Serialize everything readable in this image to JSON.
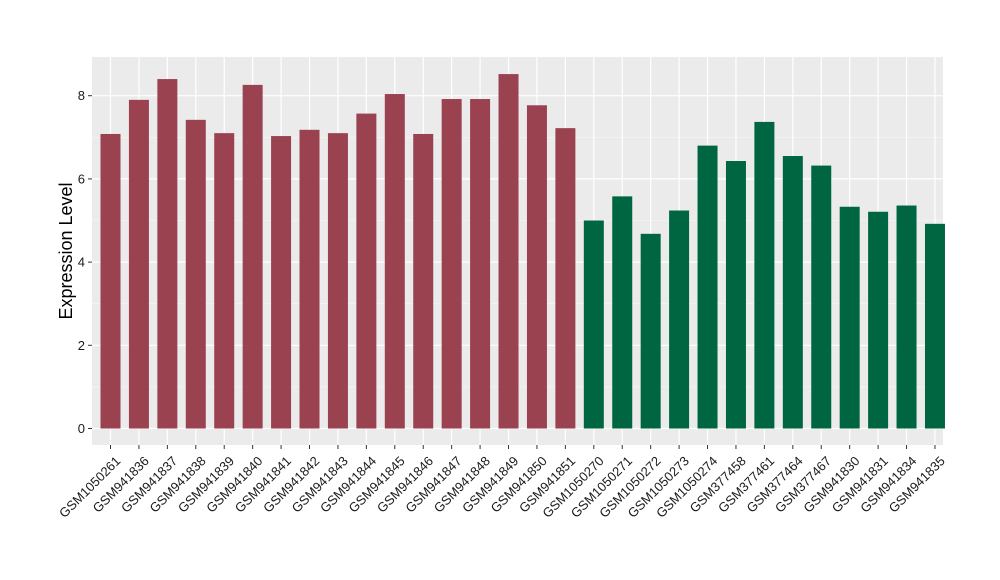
{
  "chart_data": {
    "type": "bar",
    "title": "",
    "xlabel": "",
    "ylabel": "Expression Level",
    "ylim": [
      0,
      8.9
    ],
    "yticks": [
      0,
      2,
      4,
      6,
      8
    ],
    "grid": true,
    "background": "#EBEBEB",
    "categories": [
      "GSM1050261",
      "GSM941836",
      "GSM941837",
      "GSM941838",
      "GSM941839",
      "GSM941840",
      "GSM941841",
      "GSM941842",
      "GSM941843",
      "GSM941844",
      "GSM941845",
      "GSM941846",
      "GSM941847",
      "GSM941848",
      "GSM941849",
      "GSM941850",
      "GSM941851",
      "GSM1050270",
      "GSM1050271",
      "GSM1050272",
      "GSM1050273",
      "GSM1050274",
      "GSM377458",
      "GSM377461",
      "GSM377464",
      "GSM377467",
      "GSM941830",
      "GSM941831",
      "GSM941834",
      "GSM941835"
    ],
    "values": [
      7.08,
      7.9,
      8.4,
      7.42,
      7.1,
      8.26,
      7.03,
      7.18,
      7.1,
      7.57,
      8.04,
      7.08,
      7.92,
      7.92,
      8.52,
      7.77,
      7.22,
      5.0,
      5.58,
      4.68,
      5.24,
      6.8,
      6.43,
      7.37,
      6.55,
      6.32,
      5.33,
      5.21,
      5.36,
      4.92
    ],
    "groups": [
      0,
      0,
      0,
      0,
      0,
      0,
      0,
      0,
      0,
      0,
      0,
      0,
      0,
      0,
      0,
      0,
      0,
      1,
      1,
      1,
      1,
      1,
      1,
      1,
      1,
      1,
      1,
      1,
      1,
      1
    ],
    "group_colors": [
      "#9B4251",
      "#006641"
    ]
  }
}
